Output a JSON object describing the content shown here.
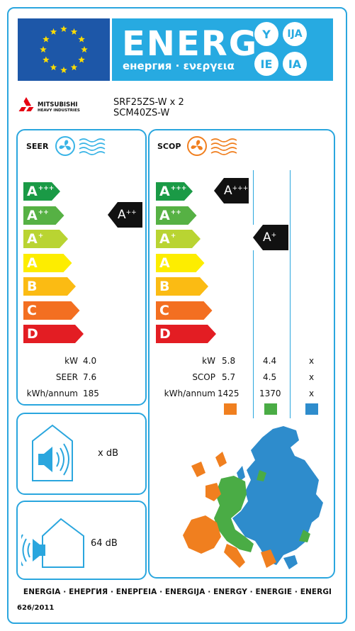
{
  "header": {
    "title": "ENERG",
    "subtitle": "енергия · ενεργεια",
    "lang_circles": [
      "Y",
      "IJA",
      "IE",
      "IA"
    ]
  },
  "manufacturer": {
    "logo_line1": "MITSUBISHI",
    "logo_line2": "HEAVY INDUSTRIES"
  },
  "model": {
    "outdoor": "SRF25ZS-W x 2",
    "indoor": "SCM40ZS-W"
  },
  "classes": [
    {
      "letter": "A",
      "sup": "+++",
      "color": "#1a9a46"
    },
    {
      "letter": "A",
      "sup": "++",
      "color": "#56b144"
    },
    {
      "letter": "A",
      "sup": "+",
      "color": "#b9d432"
    },
    {
      "letter": "A",
      "sup": "",
      "color": "#fded00"
    },
    {
      "letter": "B",
      "sup": "",
      "color": "#fbbb13"
    },
    {
      "letter": "C",
      "sup": "",
      "color": "#f36f21"
    },
    {
      "letter": "D",
      "sup": "",
      "color": "#e31d23"
    }
  ],
  "seer_panel": {
    "title": "SEER",
    "rating_letter": "A",
    "rating_sup": "++",
    "rows": [
      {
        "label": "kW",
        "value": "4.0"
      },
      {
        "label": "SEER",
        "value": "7.6"
      },
      {
        "label": "kWh/annum",
        "value": "185"
      }
    ]
  },
  "scop_panel": {
    "title": "SCOP",
    "markers": [
      {
        "letter": "A",
        "sup": "+++"
      },
      {
        "letter": "A",
        "sup": "+"
      }
    ],
    "rows": [
      {
        "label": "kW",
        "warm": "5.8",
        "average": "4.4",
        "cold": "x"
      },
      {
        "label": "SCOP",
        "warm": "5.7",
        "average": "4.5",
        "cold": "x"
      },
      {
        "label": "kWh/annum",
        "warm": "1425",
        "average": "1370",
        "cold": "x"
      }
    ],
    "zone_colors": {
      "warm": "#f07f1f",
      "average": "#4aac45",
      "cold": "#2e8ccc"
    }
  },
  "noise": {
    "indoor": "x dB",
    "outdoor": "64 dB"
  },
  "footer": {
    "languages": "ENERGIA · ЕНЕРГИЯ · ΕΝΕΡΓΕΙΑ · ENERGIJA · ENERGY · ENERGIE · ENERGI",
    "regulation": "626/2011"
  },
  "colors": {
    "frame_blue": "#2aa6de",
    "eu_blue": "#1d57a8",
    "eu_star": "#ffdd00",
    "logo_red": "#e60012"
  }
}
